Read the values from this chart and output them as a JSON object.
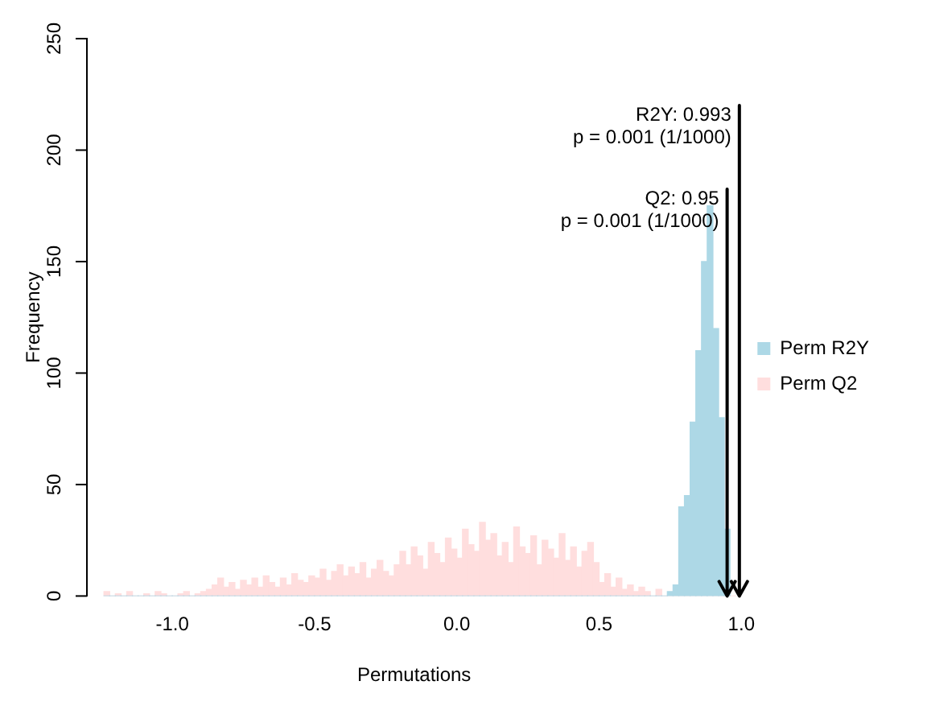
{
  "chart_data": {
    "type": "histogram",
    "xlabel": "Permutations",
    "ylabel": "Frequency",
    "xlim": [
      -1.3,
      1.0
    ],
    "ylim": [
      0,
      250
    ],
    "xticks": [
      {
        "value": -1,
        "label": "-1.0"
      },
      -0.5,
      {
        "value": 0,
        "label": "0.0"
      },
      0.5,
      {
        "value": 1,
        "label": "1.0"
      }
    ],
    "yticks": [
      0,
      50,
      100,
      150,
      200,
      250
    ],
    "legend": "right",
    "bins": [
      -1.24,
      -1.22,
      -1.2,
      -1.18,
      -1.16,
      -1.14,
      -1.12,
      -1.1,
      -1.08,
      -1.06,
      -1.04,
      -1.02,
      -1,
      -0.98,
      -0.96,
      -0.94,
      -0.92,
      -0.9,
      -0.88,
      -0.86,
      -0.84,
      -0.82,
      -0.8,
      -0.78,
      -0.76,
      -0.74,
      -0.72,
      -0.7,
      -0.68,
      -0.66,
      -0.64,
      -0.62,
      -0.6,
      -0.58,
      -0.56,
      -0.54,
      -0.52,
      -0.5,
      -0.48,
      -0.46,
      -0.44,
      -0.42,
      -0.4,
      -0.38,
      -0.36,
      -0.34,
      -0.32,
      -0.3,
      -0.28,
      -0.26,
      -0.24,
      -0.22,
      -0.2,
      -0.18,
      -0.16,
      -0.14,
      -0.12,
      -0.1,
      -0.08,
      -0.06,
      -0.04,
      -0.02,
      0,
      0.02,
      0.04,
      0.06,
      0.08,
      0.1,
      0.12,
      0.14,
      0.16,
      0.18,
      0.2,
      0.22,
      0.24,
      0.26,
      0.28,
      0.3,
      0.32,
      0.34,
      0.36,
      0.38,
      0.4,
      0.42,
      0.44,
      0.46,
      0.48,
      0.5,
      0.52,
      0.54,
      0.56,
      0.58,
      0.6,
      0.62,
      0.64,
      0.66,
      0.68,
      0.7,
      0.72,
      0.74,
      0.76,
      0.78,
      0.8,
      0.82,
      0.84,
      0.86,
      0.88,
      0.9,
      0.92,
      0.94,
      0.96,
      0.98
    ],
    "series": [
      {
        "name": "Perm R2Y",
        "color": "#add8e6",
        "values": [
          0,
          0,
          0,
          0,
          0,
          0,
          0,
          0,
          0,
          0,
          0,
          0,
          0,
          0,
          0,
          0,
          0,
          0,
          0,
          0,
          0,
          0,
          0,
          0,
          0,
          0,
          0,
          0,
          0,
          0,
          0,
          0,
          0,
          0,
          0,
          0,
          0,
          0,
          0,
          0,
          0,
          0,
          0,
          0,
          0,
          0,
          0,
          0,
          0,
          0,
          0,
          0,
          0,
          0,
          0,
          0,
          0,
          0,
          0,
          0,
          0,
          0,
          0,
          0,
          0,
          0,
          0,
          0,
          0,
          0,
          0,
          0,
          0,
          0,
          0,
          0,
          0,
          0,
          0,
          0,
          0,
          0,
          0,
          0,
          0,
          0,
          0,
          0,
          0,
          0,
          0,
          0,
          0,
          0,
          0,
          0,
          0,
          0,
          0,
          2,
          5,
          40,
          45,
          78,
          110,
          150,
          175,
          120,
          80,
          30,
          null
        ]
      },
      {
        "name": "Perm Q2",
        "color": "#ffdede",
        "values": [
          2,
          0,
          1,
          0,
          2,
          0,
          0,
          1,
          0,
          2,
          1,
          0,
          0,
          1,
          2,
          0,
          1,
          2,
          3,
          5,
          8,
          4,
          6,
          3,
          7,
          5,
          8,
          4,
          9,
          6,
          4,
          8,
          5,
          10,
          7,
          6,
          9,
          8,
          12,
          7,
          11,
          14,
          9,
          13,
          10,
          15,
          8,
          12,
          16,
          11,
          9,
          14,
          20,
          14,
          22,
          18,
          12,
          24,
          19,
          15,
          26,
          21,
          17,
          30,
          23,
          20,
          33,
          25,
          28,
          18,
          24,
          15,
          31,
          22,
          19,
          27,
          14,
          25,
          21,
          17,
          28,
          16,
          22,
          13,
          20,
          24,
          15,
          6,
          10,
          4,
          8,
          3,
          5,
          2,
          4,
          2,
          0,
          3,
          0,
          0,
          0,
          0,
          0,
          0,
          0,
          0,
          0,
          0,
          0,
          0,
          0
        ]
      }
    ],
    "ref_lines": [
      {
        "axis": "x",
        "value": 0.95,
        "label": "Q2: 0.95\np = 0.001 (1/1000)",
        "color": "#000000"
      },
      {
        "axis": "x",
        "value": 0.993,
        "label": "R2Y: 0.993\np = 0.001 (1/1000)",
        "color": "#000000"
      }
    ]
  }
}
